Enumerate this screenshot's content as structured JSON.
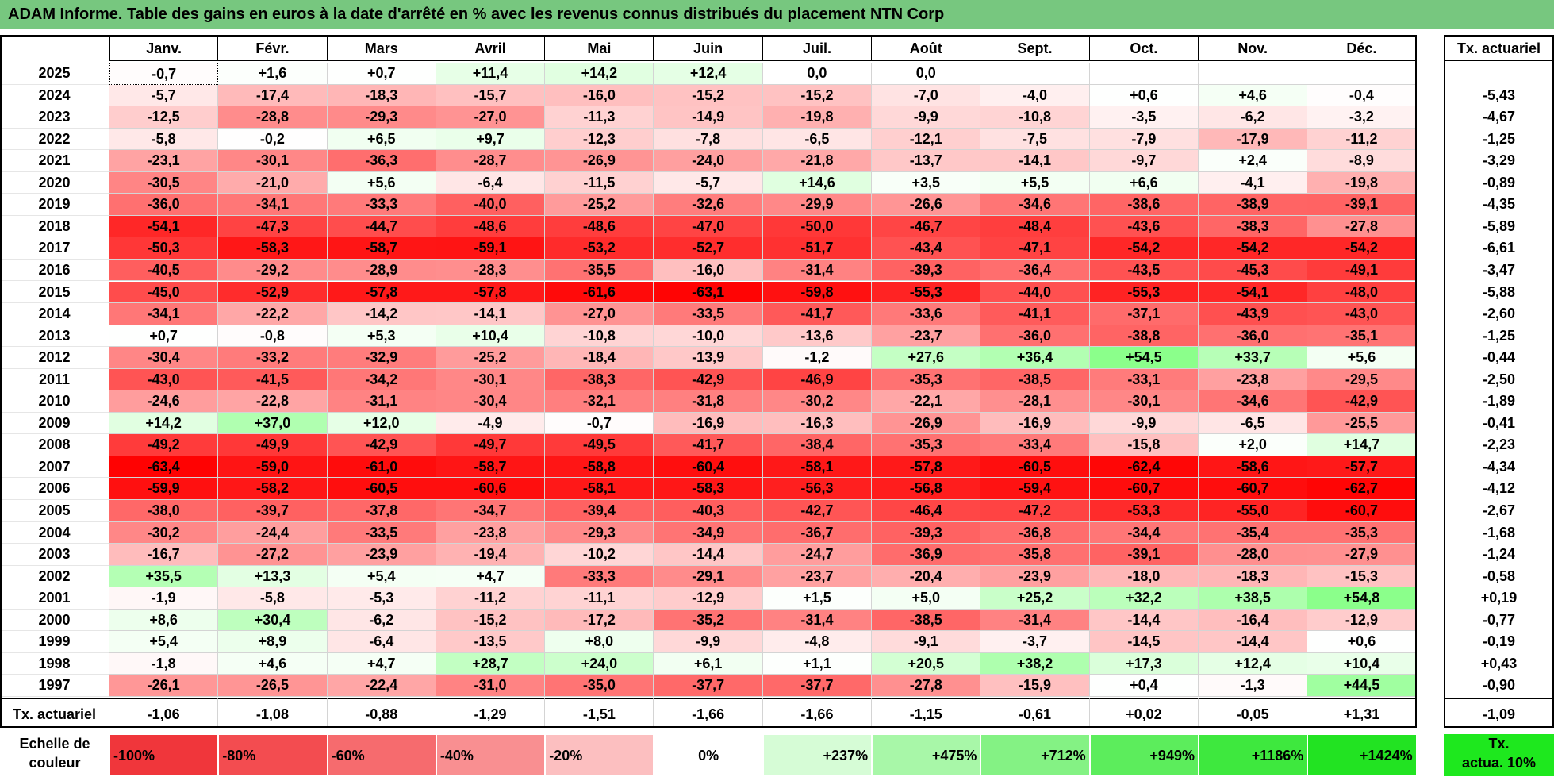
{
  "title": "ADAM Informe. Table des gains en euros à la date d'arrêté en % avec les revenus connus distribués du placement NTN Corp",
  "chart_data": {
    "type": "heatmap",
    "title": "ADAM Informe. Table des gains en euros à la date d'arrêté en % avec les revenus connus distribués du placement NTN Corp",
    "columns": [
      "Janv.",
      "Févr.",
      "Mars",
      "Avril",
      "Mai",
      "Juin",
      "Juil.",
      "Août",
      "Sept.",
      "Oct.",
      "Nov.",
      "Déc."
    ],
    "summary_column_label": "Tx. actuariel",
    "rows": [
      {
        "year": "2025",
        "values": [
          "-0,7",
          "+1,6",
          "+0,7",
          "+11,4",
          "+14,2",
          "+12,4",
          "0,0",
          "0,0",
          "",
          "",
          "",
          ""
        ],
        "tx": ""
      },
      {
        "year": "2024",
        "values": [
          "-5,7",
          "-17,4",
          "-18,3",
          "-15,7",
          "-16,0",
          "-15,2",
          "-15,2",
          "-7,0",
          "-4,0",
          "+0,6",
          "+4,6",
          "-0,4"
        ],
        "tx": "-5,43"
      },
      {
        "year": "2023",
        "values": [
          "-12,5",
          "-28,8",
          "-29,3",
          "-27,0",
          "-11,3",
          "-14,9",
          "-19,8",
          "-9,9",
          "-10,8",
          "-3,5",
          "-6,2",
          "-3,2"
        ],
        "tx": "-4,67"
      },
      {
        "year": "2022",
        "values": [
          "-5,8",
          "-0,2",
          "+6,5",
          "+9,7",
          "-12,3",
          "-7,8",
          "-6,5",
          "-12,1",
          "-7,5",
          "-7,9",
          "-17,9",
          "-11,2"
        ],
        "tx": "-1,25"
      },
      {
        "year": "2021",
        "values": [
          "-23,1",
          "-30,1",
          "-36,3",
          "-28,7",
          "-26,9",
          "-24,0",
          "-21,8",
          "-13,7",
          "-14,1",
          "-9,7",
          "+2,4",
          "-8,9"
        ],
        "tx": "-3,29"
      },
      {
        "year": "2020",
        "values": [
          "-30,5",
          "-21,0",
          "+5,6",
          "-6,4",
          "-11,5",
          "-5,7",
          "+14,6",
          "+3,5",
          "+5,5",
          "+6,6",
          "-4,1",
          "-19,8"
        ],
        "tx": "-0,89"
      },
      {
        "year": "2019",
        "values": [
          "-36,0",
          "-34,1",
          "-33,3",
          "-40,0",
          "-25,2",
          "-32,6",
          "-29,9",
          "-26,6",
          "-34,6",
          "-38,6",
          "-38,9",
          "-39,1"
        ],
        "tx": "-4,35"
      },
      {
        "year": "2018",
        "values": [
          "-54,1",
          "-47,3",
          "-44,7",
          "-48,6",
          "-48,6",
          "-47,0",
          "-50,0",
          "-46,7",
          "-48,4",
          "-43,6",
          "-38,3",
          "-27,8"
        ],
        "tx": "-5,89"
      },
      {
        "year": "2017",
        "values": [
          "-50,3",
          "-58,3",
          "-58,7",
          "-59,1",
          "-53,2",
          "-52,7",
          "-51,7",
          "-43,4",
          "-47,1",
          "-54,2",
          "-54,2",
          "-54,2"
        ],
        "tx": "-6,61"
      },
      {
        "year": "2016",
        "values": [
          "-40,5",
          "-29,2",
          "-28,9",
          "-28,3",
          "-35,5",
          "-16,0",
          "-31,4",
          "-39,3",
          "-36,4",
          "-43,5",
          "-45,3",
          "-49,1"
        ],
        "tx": "-3,47"
      },
      {
        "year": "2015",
        "values": [
          "-45,0",
          "-52,9",
          "-57,8",
          "-57,8",
          "-61,6",
          "-63,1",
          "-59,8",
          "-55,3",
          "-44,0",
          "-55,3",
          "-54,1",
          "-48,0"
        ],
        "tx": "-5,88"
      },
      {
        "year": "2014",
        "values": [
          "-34,1",
          "-22,2",
          "-14,2",
          "-14,1",
          "-27,0",
          "-33,5",
          "-41,7",
          "-33,6",
          "-41,1",
          "-37,1",
          "-43,9",
          "-43,0"
        ],
        "tx": "-2,60"
      },
      {
        "year": "2013",
        "values": [
          "+0,7",
          "-0,8",
          "+5,3",
          "+10,4",
          "-10,8",
          "-10,0",
          "-13,6",
          "-23,7",
          "-36,0",
          "-38,8",
          "-36,0",
          "-35,1"
        ],
        "tx": "-1,25"
      },
      {
        "year": "2012",
        "values": [
          "-30,4",
          "-33,2",
          "-32,9",
          "-25,2",
          "-18,4",
          "-13,9",
          "-1,2",
          "+27,6",
          "+36,4",
          "+54,5",
          "+33,7",
          "+5,6"
        ],
        "tx": "-0,44"
      },
      {
        "year": "2011",
        "values": [
          "-43,0",
          "-41,5",
          "-34,2",
          "-30,1",
          "-38,3",
          "-42,9",
          "-46,9",
          "-35,3",
          "-38,5",
          "-33,1",
          "-23,8",
          "-29,5"
        ],
        "tx": "-2,50"
      },
      {
        "year": "2010",
        "values": [
          "-24,6",
          "-22,8",
          "-31,1",
          "-30,4",
          "-32,1",
          "-31,8",
          "-30,2",
          "-22,1",
          "-28,1",
          "-30,1",
          "-34,6",
          "-42,9"
        ],
        "tx": "-1,89"
      },
      {
        "year": "2009",
        "values": [
          "+14,2",
          "+37,0",
          "+12,0",
          "-4,9",
          "-0,7",
          "-16,9",
          "-16,3",
          "-26,9",
          "-16,9",
          "-9,9",
          "-6,5",
          "-25,5"
        ],
        "tx": "-0,41"
      },
      {
        "year": "2008",
        "values": [
          "-49,2",
          "-49,9",
          "-42,9",
          "-49,7",
          "-49,5",
          "-41,7",
          "-38,4",
          "-35,3",
          "-33,4",
          "-15,8",
          "+2,0",
          "+14,7"
        ],
        "tx": "-2,23"
      },
      {
        "year": "2007",
        "values": [
          "-63,4",
          "-59,0",
          "-61,0",
          "-58,7",
          "-58,8",
          "-60,4",
          "-58,1",
          "-57,8",
          "-60,5",
          "-62,4",
          "-58,6",
          "-57,7"
        ],
        "tx": "-4,34"
      },
      {
        "year": "2006",
        "values": [
          "-59,9",
          "-58,2",
          "-60,5",
          "-60,6",
          "-58,1",
          "-58,3",
          "-56,3",
          "-56,8",
          "-59,4",
          "-60,7",
          "-60,7",
          "-62,7"
        ],
        "tx": "-4,12"
      },
      {
        "year": "2005",
        "values": [
          "-38,0",
          "-39,7",
          "-37,8",
          "-34,7",
          "-39,4",
          "-40,3",
          "-42,7",
          "-46,4",
          "-47,2",
          "-53,3",
          "-55,0",
          "-60,7"
        ],
        "tx": "-2,67"
      },
      {
        "year": "2004",
        "values": [
          "-30,2",
          "-24,4",
          "-33,5",
          "-23,8",
          "-29,3",
          "-34,9",
          "-36,7",
          "-39,3",
          "-36,8",
          "-34,4",
          "-35,4",
          "-35,3"
        ],
        "tx": "-1,68"
      },
      {
        "year": "2003",
        "values": [
          "-16,7",
          "-27,2",
          "-23,9",
          "-19,4",
          "-10,2",
          "-14,4",
          "-24,7",
          "-36,9",
          "-35,8",
          "-39,1",
          "-28,0",
          "-27,9"
        ],
        "tx": "-1,24"
      },
      {
        "year": "2002",
        "values": [
          "+35,5",
          "+13,3",
          "+5,4",
          "+4,7",
          "-33,3",
          "-29,1",
          "-23,7",
          "-20,4",
          "-23,9",
          "-18,0",
          "-18,3",
          "-15,3"
        ],
        "tx": "-0,58"
      },
      {
        "year": "2001",
        "values": [
          "-1,9",
          "-5,8",
          "-5,3",
          "-11,2",
          "-11,1",
          "-12,9",
          "+1,5",
          "+5,0",
          "+25,2",
          "+32,2",
          "+38,5",
          "+54,8"
        ],
        "tx": "+0,19"
      },
      {
        "year": "2000",
        "values": [
          "+8,6",
          "+30,4",
          "-6,2",
          "-15,2",
          "-17,2",
          "-35,2",
          "-31,4",
          "-38,5",
          "-31,4",
          "-14,4",
          "-16,4",
          "-12,9"
        ],
        "tx": "-0,77"
      },
      {
        "year": "1999",
        "values": [
          "+5,4",
          "+8,9",
          "-6,4",
          "-13,5",
          "+8,0",
          "-9,9",
          "-4,8",
          "-9,1",
          "-3,7",
          "-14,5",
          "-14,4",
          "+0,6"
        ],
        "tx": "-0,19"
      },
      {
        "year": "1998",
        "values": [
          "-1,8",
          "+4,6",
          "+4,7",
          "+28,7",
          "+24,0",
          "+6,1",
          "+1,1",
          "+20,5",
          "+38,2",
          "+17,3",
          "+12,4",
          "+10,4"
        ],
        "tx": "+0,43"
      },
      {
        "year": "1997",
        "values": [
          "-26,1",
          "-26,5",
          "-22,4",
          "-31,0",
          "-35,0",
          "-37,7",
          "-37,7",
          "-27,8",
          "-15,9",
          "+0,4",
          "-1,3",
          "+44,5"
        ],
        "tx": "-0,90"
      }
    ],
    "bottom_row": {
      "label": "Tx. actuariel",
      "values": [
        "-1,06",
        "-1,08",
        "-0,88",
        "-1,29",
        "-1,51",
        "-1,66",
        "-1,66",
        "-1,15",
        "-0,61",
        "+0,02",
        "-0,05",
        "+1,31"
      ],
      "tx": "-1,09"
    },
    "color_scale": {
      "label_line1": "Echelle de",
      "label_line2": "couleur",
      "entries": [
        {
          "text": "-100%",
          "color": "#f0363b"
        },
        {
          "text": "-80%",
          "color": "#f34c50"
        },
        {
          "text": "-60%",
          "color": "#f66b6e"
        },
        {
          "text": "-40%",
          "color": "#f98f91"
        },
        {
          "text": "-20%",
          "color": "#fcbfc0"
        },
        {
          "text": "0%",
          "color": "#ffffff"
        },
        {
          "text": "+237%",
          "color": "#d6fcd6"
        },
        {
          "text": "+475%",
          "color": "#a8f7a8"
        },
        {
          "text": "+712%",
          "color": "#84f284"
        },
        {
          "text": "+949%",
          "color": "#5ced5c"
        },
        {
          "text": "+1186%",
          "color": "#3ee83e"
        },
        {
          "text": "+1424%",
          "color": "#22e322"
        }
      ],
      "tx_label_line1": "Tx.",
      "tx_label_line2": "actua. 10%"
    },
    "colors": {
      "title_bar": "#77c77f",
      "negative_max": "#ff0000",
      "positive_max": "#00ff00",
      "zero": "#ffffff"
    },
    "first_year_first_cell_selected": true
  }
}
